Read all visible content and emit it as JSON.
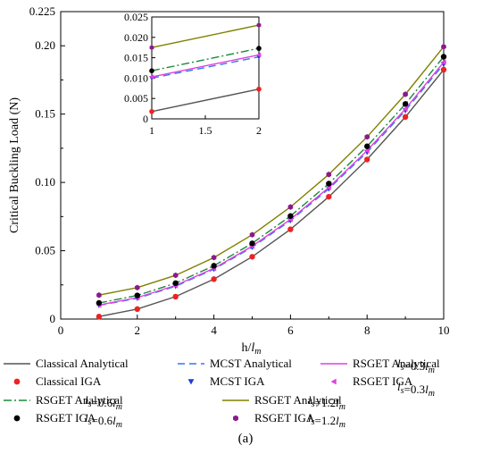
{
  "chart_data": {
    "type": "line",
    "xlabel": "h/l_m",
    "ylabel": "Critical Buckling Load (N)",
    "xlim": [
      0,
      10
    ],
    "ylim": [
      0,
      0.225
    ],
    "xticks": [
      "0",
      "2",
      "4",
      "6",
      "8",
      "10"
    ],
    "yticks": [
      "0",
      "0.05",
      "0.10",
      "0.15",
      "0.20",
      "0.225"
    ],
    "grid": false,
    "x": [
      1,
      2,
      3,
      4,
      5,
      6,
      7,
      8,
      9,
      10
    ],
    "series": [
      {
        "name": "Classical Analytical",
        "style": "line",
        "color": "#555555",
        "dash": "",
        "values": [
          0.0018,
          0.0073,
          0.0164,
          0.0292,
          0.0456,
          0.0657,
          0.0895,
          0.1168,
          0.1479,
          0.1825
        ]
      },
      {
        "name": "Classical IGA",
        "style": "marker",
        "marker": "circle",
        "color": "#ee2222",
        "values": [
          0.0018,
          0.0073,
          0.0164,
          0.0292,
          0.0456,
          0.0657,
          0.0895,
          0.1168,
          0.1479,
          0.1825
        ]
      },
      {
        "name": "MCST Analytical",
        "style": "line",
        "color": "#3377ee",
        "dash": "8,5",
        "values": [
          0.01,
          0.0152,
          0.024,
          0.0365,
          0.0525,
          0.0721,
          0.0953,
          0.1221,
          0.1526,
          0.1865
        ]
      },
      {
        "name": "MCST IGA",
        "style": "marker",
        "marker": "tri-down",
        "color": "#1a3adb",
        "values": [
          0.01,
          0.0152,
          0.024,
          0.0365,
          0.0525,
          0.0721,
          0.0953,
          0.1221,
          0.1526,
          0.1865
        ]
      },
      {
        "name": "RSGET Analytical",
        "style": "line",
        "color": "#e040e0",
        "dash": "",
        "values": [
          0.0103,
          0.0157,
          0.0246,
          0.0371,
          0.0533,
          0.073,
          0.0963,
          0.1233,
          0.1538,
          0.188
        ]
      },
      {
        "name": "RSGET IGA",
        "style": "marker",
        "marker": "tri-left",
        "color": "#e040e0",
        "values": [
          0.0103,
          0.0157,
          0.0246,
          0.0371,
          0.0533,
          0.073,
          0.0963,
          0.1233,
          0.1538,
          0.188
        ]
      },
      {
        "name": "RSGET Analytical",
        "style": "line",
        "color": "#1b8a3a",
        "dash": "9,3,2,3",
        "values": [
          0.0118,
          0.0173,
          0.0263,
          0.039,
          0.0554,
          0.0754,
          0.0991,
          0.1264,
          0.1574,
          0.192
        ]
      },
      {
        "name": "RSGET IGA",
        "style": "marker",
        "marker": "circle",
        "color": "#000000",
        "values": [
          0.0118,
          0.0173,
          0.0263,
          0.039,
          0.0554,
          0.0754,
          0.0991,
          0.1264,
          0.1574,
          0.192
        ]
      },
      {
        "name": "RSGET Analytical",
        "style": "line",
        "color": "#808000",
        "dash": "",
        "values": [
          0.0175,
          0.023,
          0.032,
          0.045,
          0.0617,
          0.082,
          0.1058,
          0.1333,
          0.1645,
          0.1993
        ]
      },
      {
        "name": "RSGET IGA",
        "style": "marker",
        "marker": "hexagon",
        "color": "#8b1a8b",
        "values": [
          0.0175,
          0.023,
          0.032,
          0.045,
          0.0617,
          0.082,
          0.1058,
          0.1333,
          0.1645,
          0.1993
        ]
      }
    ],
    "inset": {
      "xlim": [
        1,
        2
      ],
      "ylim": [
        0,
        0.025
      ],
      "xticks": [
        "1",
        "1.5",
        "2"
      ],
      "yticks": [
        "0",
        "0.005",
        "0.010",
        "0.015",
        "0.020",
        "0.025"
      ]
    },
    "legend": {
      "placement": "bottom",
      "entries": [
        {
          "label": "Classical  Analytical",
          "param": ""
        },
        {
          "label": "MCST  Analytical",
          "param": ""
        },
        {
          "label": "RSGET  Analytical",
          "param": "l_s=0.3l_m"
        },
        {
          "label": "Classical  IGA",
          "param": ""
        },
        {
          "label": "MCST  IGA",
          "param": ""
        },
        {
          "label": "RSGET   IGA",
          "param": "l_s=0.3l_m"
        },
        {
          "label": "RSGET  Analytical",
          "param": "l_s=0.6l_m"
        },
        {
          "label": "RSGET  Analytical",
          "param": "l_s=1.2l_m"
        },
        {
          "label": "RSGET   IGA",
          "param": "l_s=0.6l_m"
        },
        {
          "label": "RSGET   IGA",
          "param": "l_s=1.2l_m"
        }
      ]
    },
    "caption": "(a)"
  }
}
